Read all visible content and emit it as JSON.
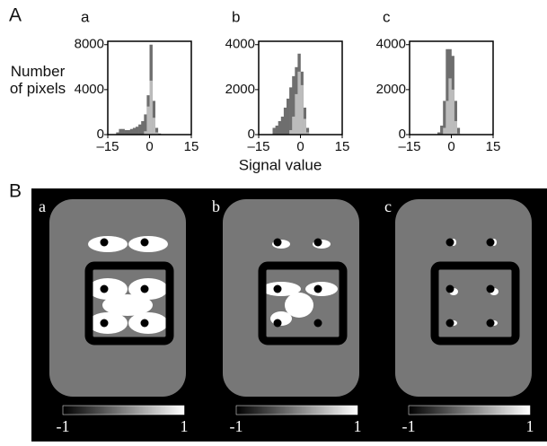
{
  "chart_data": [
    {
      "type": "histogram",
      "label": "a",
      "bins": [
        -15,
        -14,
        -13,
        -12,
        -11,
        -10,
        -9,
        -8,
        -7,
        -6,
        -5,
        -4,
        -3,
        -2,
        -1,
        0,
        1,
        2,
        3,
        4,
        5,
        6,
        7,
        8,
        9,
        10,
        11,
        12,
        13,
        14,
        15
      ],
      "series": [
        {
          "color": "#6e6e6e",
          "values": [
            0,
            0,
            0,
            200,
            500,
            500,
            400,
            400,
            500,
            600,
            700,
            900,
            1200,
            1800,
            3500,
            8000,
            3000,
            600,
            100,
            0,
            0,
            0,
            0,
            0,
            0,
            0,
            0,
            0,
            0,
            0
          ]
        },
        {
          "color": "#bcbcbc",
          "values": [
            0,
            0,
            0,
            0,
            0,
            0,
            0,
            0,
            0,
            0,
            0,
            0,
            0,
            300,
            2500,
            4800,
            1500,
            200,
            0,
            0,
            0,
            0,
            0,
            0,
            0,
            0,
            0,
            0,
            0,
            0
          ]
        }
      ],
      "xlim": [
        -15,
        15
      ],
      "xticks": [
        {
          "value": -15,
          "label": "–15"
        },
        0,
        15
      ],
      "ylim": [
        0,
        8300
      ],
      "yticks": [
        0,
        4000,
        8000
      ]
    },
    {
      "type": "histogram",
      "label": "b",
      "bins": [
        -15,
        -14,
        -13,
        -12,
        -11,
        -10,
        -9,
        -8,
        -7,
        -6,
        -5,
        -4,
        -3,
        -2,
        -1,
        0,
        1,
        2,
        3,
        4,
        5,
        6,
        7,
        8,
        9,
        10,
        11,
        12,
        13,
        14,
        15
      ],
      "series": [
        {
          "color": "#6e6e6e",
          "values": [
            0,
            0,
            0,
            0,
            0,
            300,
            400,
            600,
            800,
            1200,
            1600,
            2100,
            2600,
            3000,
            3600,
            2800,
            1200,
            300,
            0,
            0,
            0,
            0,
            0,
            0,
            0,
            0,
            0,
            0,
            0,
            0
          ]
        },
        {
          "color": "#bcbcbc",
          "values": [
            0,
            0,
            0,
            0,
            0,
            0,
            0,
            0,
            0,
            0,
            0,
            200,
            800,
            1800,
            2800,
            2200,
            700,
            100,
            0,
            0,
            0,
            0,
            0,
            0,
            0,
            0,
            0,
            0,
            0,
            0
          ]
        }
      ],
      "xlim": [
        -15,
        15
      ],
      "xticks": [
        {
          "value": -15,
          "label": "–15"
        },
        0,
        15
      ],
      "ylim": [
        0,
        4150
      ],
      "yticks": [
        0,
        2000,
        4000
      ]
    },
    {
      "type": "histogram",
      "label": "c",
      "bins": [
        -15,
        -14,
        -13,
        -12,
        -11,
        -10,
        -9,
        -8,
        -7,
        -6,
        -5,
        -4,
        -3,
        -2,
        -1,
        0,
        1,
        2,
        3,
        4,
        5,
        6,
        7,
        8,
        9,
        10,
        11,
        12,
        13,
        14,
        15
      ],
      "series": [
        {
          "color": "#6e6e6e",
          "values": [
            0,
            0,
            0,
            0,
            0,
            0,
            0,
            0,
            0,
            0,
            100,
            400,
            1500,
            3800,
            3800,
            3500,
            1500,
            300,
            0,
            0,
            0,
            0,
            0,
            0,
            0,
            0,
            0,
            0,
            0,
            0
          ]
        },
        {
          "color": "#bcbcbc",
          "values": [
            0,
            0,
            0,
            0,
            0,
            0,
            0,
            0,
            0,
            0,
            0,
            0,
            300,
            1500,
            2500,
            2000,
            600,
            50,
            0,
            0,
            0,
            0,
            0,
            0,
            0,
            0,
            0,
            0,
            0,
            0
          ]
        }
      ],
      "xlim": [
        -15,
        15
      ],
      "xticks": [
        {
          "value": -15,
          "label": "–15"
        },
        0,
        15
      ],
      "ylim": [
        0,
        4150
      ],
      "yticks": [
        0,
        2000,
        4000
      ]
    }
  ],
  "figure": {
    "panel_labels": [
      "A",
      "B"
    ],
    "y_label": "Number of pixels",
    "x_label": "Signal value",
    "image_panels": [
      {
        "label": "a"
      },
      {
        "label": "b"
      },
      {
        "label": "c"
      }
    ],
    "colorbar_ticks": [
      -1,
      1
    ]
  }
}
